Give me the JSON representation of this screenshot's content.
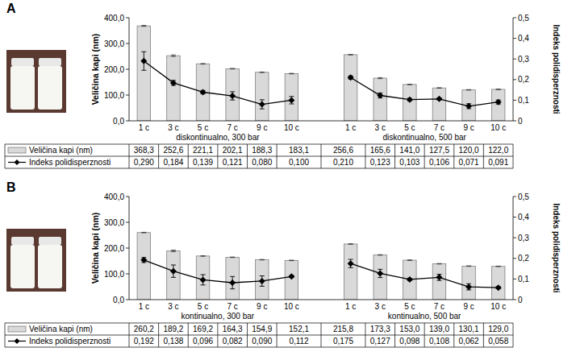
{
  "chart_data": [
    {
      "type": "bar",
      "panel": "A",
      "y_label": "Veličina kapi (nm)",
      "y2_label": "Indeks polidisperznosti",
      "ylim": [
        0,
        400
      ],
      "yticks": [
        {
          "value": 0,
          "label": "0,0"
        },
        {
          "value": 100,
          "label": "100,0"
        },
        {
          "value": 200,
          "label": "200,0"
        },
        {
          "value": 300,
          "label": "300,0"
        },
        {
          "value": 400,
          "label": "400,0"
        }
      ],
      "y2lim": [
        0,
        0.5
      ],
      "y2ticks": [
        0,
        {
          "value": 0.1,
          "label": "0,1"
        },
        {
          "value": 0.2,
          "label": "0,2"
        },
        {
          "value": 0.3,
          "label": "0,3"
        },
        {
          "value": 0.4,
          "label": "0,4"
        },
        {
          "value": 0.5,
          "label": "0,5"
        }
      ],
      "groups": [
        {
          "title": "diskontinualno, 300 bar",
          "categories": [
            "1 c",
            "3 c",
            "5 c",
            "7 c",
            "9 c",
            "10 c"
          ]
        },
        {
          "title": "diskontinualno, 500 bar",
          "categories": [
            "1 c",
            "3 c",
            "5 c",
            "7 c",
            "9 c",
            "10 c"
          ]
        }
      ],
      "series": [
        {
          "name": "Veličina kapi (nm)",
          "type": "bar",
          "color": "#d9d9d9",
          "values": [
            368.3,
            252.6,
            221.1,
            202.1,
            188.3,
            183.1,
            256.6,
            165.6,
            141.0,
            127.5,
            120.0,
            122.0
          ],
          "value_labels": [
            "368,3",
            "252,6",
            "221,1",
            "202,1",
            "188,3",
            "183,1",
            "256,6",
            "165,6",
            "141,0",
            "127,5",
            "120,0",
            "122,0"
          ],
          "errors": [
            2,
            3,
            1,
            1,
            1,
            1,
            1,
            2,
            1,
            1,
            1,
            1
          ]
        },
        {
          "name": "Indeks polidisperznosti",
          "type": "line",
          "axis": "y2",
          "color": "#000000",
          "marker": "diamond",
          "line_style": "solid",
          "values": [
            0.29,
            0.184,
            0.139,
            0.121,
            0.08,
            0.1,
            0.21,
            0.123,
            0.103,
            0.106,
            0.071,
            0.091
          ],
          "value_labels": [
            "0,290",
            "0,184",
            "0,139",
            "0,121",
            "0,080",
            "0,100",
            "0,210",
            "0,123",
            "0,103",
            "0,106",
            "0,071",
            "0,091"
          ],
          "errors": [
            0.045,
            0.012,
            0.008,
            0.02,
            0.022,
            0.018,
            0.008,
            0.012,
            0.006,
            0.005,
            0.012,
            0.01
          ]
        }
      ]
    },
    {
      "type": "bar",
      "panel": "B",
      "y_label": "Veličina kapi (nm)",
      "y2_label": "Indeks polidisperznosti",
      "ylim": [
        0,
        400
      ],
      "yticks": [
        {
          "value": 0,
          "label": "0,0"
        },
        {
          "value": 100,
          "label": "100,0"
        },
        {
          "value": 200,
          "label": "200,0"
        },
        {
          "value": 300,
          "label": "300,0"
        },
        {
          "value": 400,
          "label": "400,0"
        }
      ],
      "y2lim": [
        0,
        0.5
      ],
      "y2ticks": [
        0,
        {
          "value": 0.1,
          "label": "0,1"
        },
        {
          "value": 0.2,
          "label": "0,2"
        },
        {
          "value": 0.3,
          "label": "0,3"
        },
        {
          "value": 0.4,
          "label": "0,4"
        },
        {
          "value": 0.5,
          "label": "0,5"
        }
      ],
      "groups": [
        {
          "title": "kontinualno, 300 bar",
          "categories": [
            "1 c",
            "3 c",
            "5 c",
            "7 c",
            "9 c",
            "10 c"
          ]
        },
        {
          "title": "kontinualno, 500 bar",
          "categories": [
            "1 c",
            "3 c",
            "5 c",
            "7 c",
            "9 c",
            "10 c"
          ]
        }
      ],
      "series": [
        {
          "name": "Veličina kapi (nm)",
          "type": "bar",
          "color": "#d9d9d9",
          "values": [
            260.2,
            189.2,
            169.2,
            164.3,
            154.9,
            152.1,
            215.8,
            173.3,
            153.0,
            139.0,
            130.1,
            129.0
          ],
          "value_labels": [
            "260,2",
            "189,2",
            "169,2",
            "164,3",
            "154,9",
            "152,1",
            "215,8",
            "173,3",
            "153,0",
            "139,0",
            "130,1",
            "129,0"
          ],
          "errors": [
            1,
            3,
            1,
            1,
            1,
            1,
            1,
            1,
            1,
            1,
            1,
            1
          ]
        },
        {
          "name": "Indeks polidisperznosti",
          "type": "line",
          "axis": "y2",
          "color": "#000000",
          "marker": "diamond",
          "line_style": "solid",
          "values": [
            0.192,
            0.138,
            0.096,
            0.082,
            0.09,
            0.112,
            0.175,
            0.127,
            0.098,
            0.108,
            0.062,
            0.058
          ],
          "value_labels": [
            "0,192",
            "0,138",
            "0,096",
            "0,082",
            "0,090",
            "0,112",
            "0,175",
            "0,127",
            "0,098",
            "0,108",
            "0,062",
            "0,058"
          ],
          "errors": [
            0.012,
            0.03,
            0.025,
            0.03,
            0.025,
            0.005,
            0.02,
            0.02,
            0.005,
            0.015,
            0.015,
            0.005
          ]
        }
      ]
    }
  ]
}
